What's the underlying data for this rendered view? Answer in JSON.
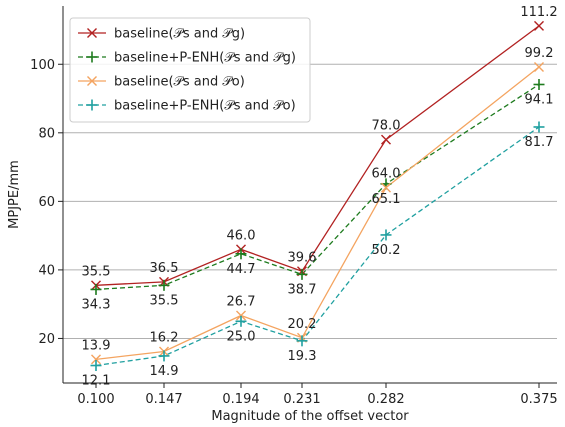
{
  "chart_data": {
    "type": "line",
    "xlabel": "Magnitude of the offset vector",
    "ylabel": "MPJPE/mm",
    "x": [
      "0.100",
      "0.147",
      "0.194",
      "0.231",
      "0.282",
      "0.375"
    ],
    "ylim": [
      7,
      117
    ],
    "yticks": [
      20,
      40,
      60,
      80,
      100
    ],
    "grid": "horizontal",
    "legend_position": "top-left",
    "series": [
      {
        "name": "baseline(𝒫s and 𝒫g)",
        "values": [
          35.5,
          36.5,
          46.0,
          39.6,
          78.0,
          111.2
        ],
        "labels": [
          "35.5",
          "36.5",
          "46.0",
          "39.6",
          "78.0",
          "111.2"
        ],
        "color": "#b22222",
        "marker": "x",
        "linestyle": "solid"
      },
      {
        "name": "baseline+P-ENH(𝒫s and 𝒫g)",
        "values": [
          34.3,
          35.5,
          44.7,
          38.7,
          65.1,
          94.1
        ],
        "labels": [
          "34.3",
          "35.5",
          "44.7",
          "38.7",
          "65.1",
          "94.1"
        ],
        "color": "#1e7b1e",
        "marker": "+",
        "linestyle": "dashed"
      },
      {
        "name": "baseline(𝒫s and 𝒫o)",
        "values": [
          13.9,
          16.2,
          26.7,
          20.2,
          64.0,
          99.2
        ],
        "labels": [
          "13.9",
          "16.2",
          "26.7",
          "20.2",
          "64.0",
          "99.2"
        ],
        "color": "#f4a460",
        "marker": "x",
        "linestyle": "solid"
      },
      {
        "name": "baseline+P-ENH(𝒫s and 𝒫o)",
        "values": [
          12.1,
          14.9,
          25.0,
          19.3,
          50.2,
          81.7
        ],
        "labels": [
          "12.1",
          "14.9",
          "25.0",
          "19.3",
          "50.2",
          "81.7"
        ],
        "color": "#20a0a0",
        "marker": "+",
        "linestyle": "dashed"
      }
    ]
  }
}
